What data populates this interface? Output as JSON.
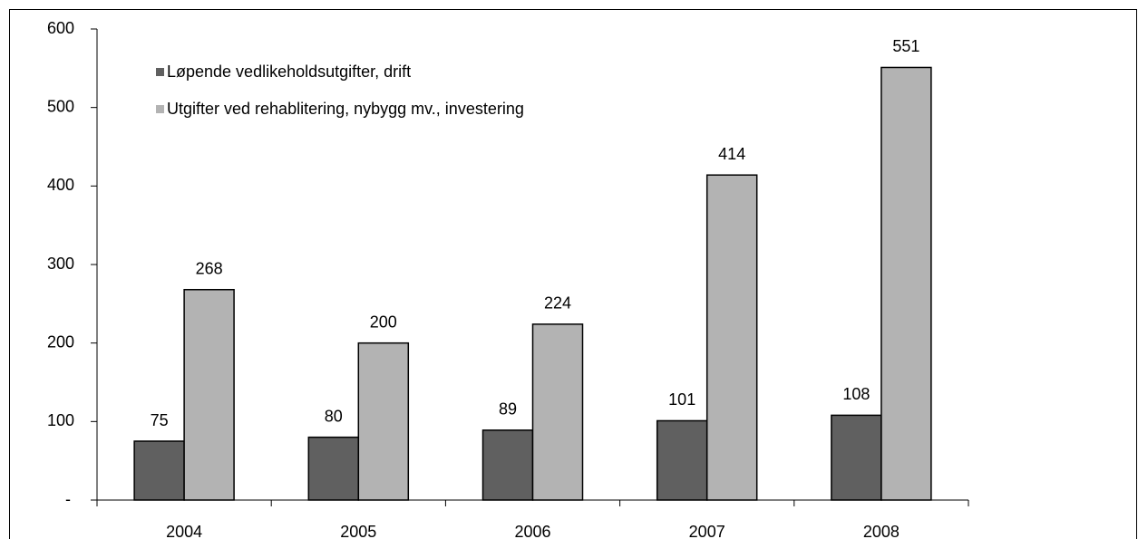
{
  "chart_data": {
    "type": "bar",
    "categories": [
      "2004",
      "2005",
      "2006",
      "2007",
      "2008"
    ],
    "series": [
      {
        "name": "Løpende vedlikeholdsutgifter, drift",
        "color": "#606060",
        "values": [
          75,
          80,
          89,
          101,
          108
        ]
      },
      {
        "name": "Utgifter ved rehablitering, nybygg mv., investering",
        "color": "#b3b3b3",
        "values": [
          268,
          200,
          224,
          414,
          551
        ]
      }
    ],
    "ylim": [
      0,
      600
    ],
    "yticks": [
      {
        "value": 0,
        "label": "-"
      },
      100,
      200,
      300,
      400,
      500,
      600
    ],
    "grid": false,
    "legend": "top-left"
  }
}
